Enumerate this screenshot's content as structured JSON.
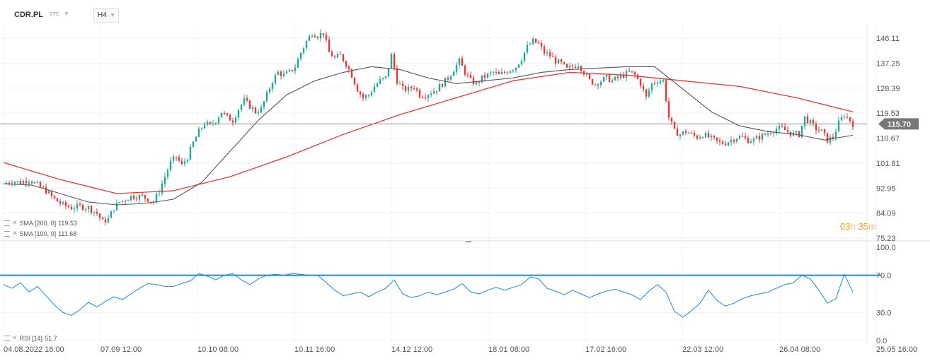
{
  "header": {
    "symbol": "CDR.PL",
    "symbol_sub": "STC",
    "timeframe": "H4"
  },
  "indicators": [
    {
      "label": "SMA [200, 0]",
      "value": "119.53",
      "color": "#e53935"
    },
    {
      "label": "SMA [100, 0]",
      "value": "111.68",
      "color": "#555555"
    }
  ],
  "rsi_legend": {
    "label": "RSI [14]",
    "value": "51.7"
  },
  "countdown": {
    "hours": "03",
    "h_unit": "h",
    "minutes": "35",
    "m_unit": "m"
  },
  "colors": {
    "up": "#26a69a",
    "down": "#e53935",
    "sma200": "#e53935",
    "sma100": "#555555",
    "rsi": "#1e88e5",
    "price_label_bg": "#777777"
  },
  "chart_data": [
    {
      "type": "candlestick",
      "title": "CDR.PL",
      "ylim": [
        75.23,
        150.0
      ],
      "y_ticks": [
        "146.11",
        "137.25",
        "128.39",
        "119.53",
        "110.67",
        "101.81",
        "92.95",
        "84.09",
        "75.23"
      ],
      "x_ticks": [
        "04.08.2022 16:00",
        "07.09 12:00",
        "10.10 08:00",
        "10.11 16:00",
        "14.12 12:00",
        "18.01 08:00",
        "17.02 16:00",
        "22.03 12:00",
        "26.04 08:00",
        "25.05 16:00"
      ],
      "last_price": "115.70",
      "price_path": [
        [
          0,
          94.5
        ],
        [
          3,
          95.5
        ],
        [
          6,
          95
        ],
        [
          9,
          96
        ],
        [
          12,
          94
        ],
        [
          15,
          92
        ],
        [
          18,
          89
        ],
        [
          21,
          87
        ],
        [
          24,
          86
        ],
        [
          27,
          86.5
        ],
        [
          30,
          86
        ],
        [
          33,
          84
        ],
        [
          35,
          81
        ],
        [
          37,
          82
        ],
        [
          39,
          86
        ],
        [
          41,
          88
        ],
        [
          43,
          89
        ],
        [
          45,
          90
        ],
        [
          47,
          90
        ],
        [
          49,
          90
        ],
        [
          51,
          89
        ],
        [
          53,
          88
        ],
        [
          55,
          92
        ],
        [
          57,
          97
        ],
        [
          59,
          102
        ],
        [
          61,
          104
        ],
        [
          63,
          101
        ],
        [
          65,
          104
        ],
        [
          67,
          109
        ],
        [
          69,
          113
        ],
        [
          71,
          116
        ],
        [
          73,
          115
        ],
        [
          75,
          117
        ],
        [
          77,
          120
        ],
        [
          79,
          118
        ],
        [
          81,
          117
        ],
        [
          83,
          121
        ],
        [
          85,
          124
        ],
        [
          87,
          122
        ],
        [
          89,
          120
        ],
        [
          91,
          121
        ],
        [
          93,
          126
        ],
        [
          95,
          131
        ],
        [
          97,
          134
        ],
        [
          99,
          133
        ],
        [
          101,
          134
        ],
        [
          103,
          136
        ],
        [
          105,
          141
        ],
        [
          107,
          145
        ],
        [
          109,
          148
        ],
        [
          111,
          147
        ],
        [
          113,
          148
        ],
        [
          115,
          141
        ],
        [
          117,
          139
        ],
        [
          119,
          140
        ],
        [
          121,
          137
        ],
        [
          123,
          133
        ],
        [
          125,
          128
        ],
        [
          127,
          125
        ],
        [
          129,
          126
        ],
        [
          131,
          129
        ],
        [
          133,
          131
        ],
        [
          135,
          132
        ],
        [
          137,
          140
        ],
        [
          139,
          131
        ],
        [
          141,
          128
        ],
        [
          143,
          128
        ],
        [
          145,
          129
        ],
        [
          147,
          126
        ],
        [
          149,
          126
        ],
        [
          151,
          127
        ],
        [
          153,
          128
        ],
        [
          155,
          130
        ],
        [
          157,
          132
        ],
        [
          159,
          135
        ],
        [
          161,
          138
        ],
        [
          163,
          134
        ],
        [
          165,
          131
        ],
        [
          167,
          130
        ],
        [
          169,
          132
        ],
        [
          171,
          133
        ],
        [
          173,
          134
        ],
        [
          175,
          133
        ],
        [
          177,
          134
        ],
        [
          179,
          135
        ],
        [
          181,
          136
        ],
        [
          183,
          139
        ],
        [
          185,
          143
        ],
        [
          187,
          145
        ],
        [
          189,
          144
        ],
        [
          191,
          141
        ],
        [
          193,
          140
        ],
        [
          195,
          138
        ],
        [
          197,
          137
        ],
        [
          199,
          135
        ],
        [
          201,
          136
        ],
        [
          203,
          137
        ],
        [
          205,
          134
        ],
        [
          207,
          131
        ],
        [
          209,
          130
        ],
        [
          211,
          131
        ],
        [
          213,
          132
        ],
        [
          215,
          131
        ],
        [
          217,
          132
        ],
        [
          219,
          133
        ],
        [
          221,
          134
        ],
        [
          223,
          133
        ],
        [
          225,
          130
        ],
        [
          227,
          125
        ],
        [
          229,
          130
        ],
        [
          231,
          131
        ],
        [
          233,
          131
        ],
        [
          235,
          118
        ],
        [
          237,
          113
        ],
        [
          239,
          112
        ],
        [
          241,
          113
        ],
        [
          243,
          112
        ],
        [
          245,
          111
        ],
        [
          247,
          112
        ],
        [
          249,
          111
        ],
        [
          251,
          110
        ],
        [
          253,
          109
        ],
        [
          255,
          109
        ],
        [
          257,
          110
        ],
        [
          259,
          111
        ],
        [
          261,
          111
        ],
        [
          263,
          110
        ],
        [
          265,
          110
        ],
        [
          267,
          111
        ],
        [
          269,
          112
        ],
        [
          271,
          113
        ],
        [
          273,
          114
        ],
        [
          275,
          114
        ],
        [
          277,
          113
        ],
        [
          279,
          112
        ],
        [
          281,
          112
        ],
        [
          283,
          118
        ],
        [
          285,
          116
        ],
        [
          287,
          114
        ],
        [
          289,
          113
        ],
        [
          291,
          110
        ],
        [
          293,
          111
        ],
        [
          295,
          116
        ],
        [
          297,
          119
        ],
        [
          299,
          117
        ],
        [
          300,
          115.7
        ]
      ],
      "sma200": [
        [
          0,
          102
        ],
        [
          20,
          96
        ],
        [
          40,
          91
        ],
        [
          60,
          92
        ],
        [
          80,
          97
        ],
        [
          100,
          104
        ],
        [
          120,
          112
        ],
        [
          140,
          119
        ],
        [
          160,
          125
        ],
        [
          180,
          131
        ],
        [
          200,
          134
        ],
        [
          220,
          133
        ],
        [
          240,
          131
        ],
        [
          260,
          129
        ],
        [
          280,
          125
        ],
        [
          300,
          120
        ]
      ],
      "sma100": [
        [
          0,
          94.5
        ],
        [
          10,
          94
        ],
        [
          20,
          91
        ],
        [
          30,
          88
        ],
        [
          40,
          87
        ],
        [
          50,
          87.5
        ],
        [
          60,
          89
        ],
        [
          70,
          95
        ],
        [
          80,
          106
        ],
        [
          90,
          117
        ],
        [
          100,
          126
        ],
        [
          110,
          131
        ],
        [
          120,
          134
        ],
        [
          130,
          136
        ],
        [
          140,
          135
        ],
        [
          150,
          132
        ],
        [
          160,
          130
        ],
        [
          170,
          131
        ],
        [
          180,
          132
        ],
        [
          190,
          134
        ],
        [
          200,
          135
        ],
        [
          210,
          135.5
        ],
        [
          220,
          136
        ],
        [
          230,
          136
        ],
        [
          240,
          128
        ],
        [
          250,
          120
        ],
        [
          260,
          115
        ],
        [
          270,
          113
        ],
        [
          280,
          112
        ],
        [
          290,
          110
        ],
        [
          300,
          111.68
        ]
      ]
    },
    {
      "type": "line",
      "title": "RSI [14]",
      "ylim": [
        0,
        100
      ],
      "y_ticks": [
        "100.0",
        "70.0",
        "30.0",
        "0.0"
      ],
      "level": 70,
      "last_value": 51.7,
      "values": [
        [
          0,
          60
        ],
        [
          3,
          56
        ],
        [
          6,
          62
        ],
        [
          9,
          52
        ],
        [
          12,
          58
        ],
        [
          15,
          48
        ],
        [
          18,
          38
        ],
        [
          21,
          30
        ],
        [
          24,
          27
        ],
        [
          27,
          33
        ],
        [
          30,
          41
        ],
        [
          33,
          36
        ],
        [
          36,
          42
        ],
        [
          39,
          47
        ],
        [
          42,
          44
        ],
        [
          45,
          50
        ],
        [
          48,
          56
        ],
        [
          51,
          61
        ],
        [
          54,
          60
        ],
        [
          57,
          58
        ],
        [
          60,
          58
        ],
        [
          63,
          61
        ],
        [
          66,
          64
        ],
        [
          69,
          72
        ],
        [
          72,
          69
        ],
        [
          75,
          65
        ],
        [
          78,
          70
        ],
        [
          81,
          72
        ],
        [
          84,
          65
        ],
        [
          87,
          60
        ],
        [
          90,
          66
        ],
        [
          93,
          70
        ],
        [
          96,
          71
        ],
        [
          99,
          70
        ],
        [
          102,
          72
        ],
        [
          105,
          71
        ],
        [
          108,
          70
        ],
        [
          111,
          70
        ],
        [
          114,
          62
        ],
        [
          117,
          54
        ],
        [
          120,
          48
        ],
        [
          123,
          50
        ],
        [
          126,
          52
        ],
        [
          129,
          47
        ],
        [
          132,
          52
        ],
        [
          135,
          56
        ],
        [
          138,
          65
        ],
        [
          141,
          50
        ],
        [
          144,
          46
        ],
        [
          147,
          48
        ],
        [
          150,
          52
        ],
        [
          153,
          49
        ],
        [
          156,
          52
        ],
        [
          159,
          55
        ],
        [
          162,
          61
        ],
        [
          165,
          52
        ],
        [
          168,
          50
        ],
        [
          171,
          54
        ],
        [
          174,
          57
        ],
        [
          177,
          54
        ],
        [
          180,
          57
        ],
        [
          183,
          60
        ],
        [
          186,
          68
        ],
        [
          189,
          66
        ],
        [
          192,
          56
        ],
        [
          195,
          53
        ],
        [
          198,
          49
        ],
        [
          201,
          54
        ],
        [
          204,
          50
        ],
        [
          207,
          46
        ],
        [
          210,
          50
        ],
        [
          213,
          53
        ],
        [
          216,
          55
        ],
        [
          219,
          52
        ],
        [
          222,
          49
        ],
        [
          225,
          44
        ],
        [
          228,
          53
        ],
        [
          231,
          60
        ],
        [
          234,
          52
        ],
        [
          237,
          31
        ],
        [
          240,
          25
        ],
        [
          243,
          32
        ],
        [
          246,
          40
        ],
        [
          249,
          54
        ],
        [
          252,
          43
        ],
        [
          255,
          37
        ],
        [
          258,
          40
        ],
        [
          261,
          45
        ],
        [
          264,
          48
        ],
        [
          267,
          50
        ],
        [
          270,
          52
        ],
        [
          273,
          56
        ],
        [
          276,
          60
        ],
        [
          279,
          62
        ],
        [
          282,
          70
        ],
        [
          285,
          66
        ],
        [
          288,
          54
        ],
        [
          291,
          40
        ],
        [
          294,
          45
        ],
        [
          297,
          71
        ],
        [
          300,
          51.7
        ]
      ]
    }
  ]
}
